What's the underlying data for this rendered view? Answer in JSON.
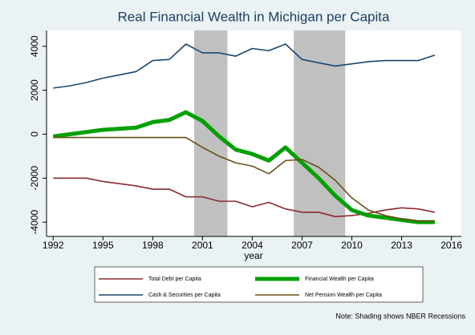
{
  "chart_data": {
    "type": "line",
    "title": "Real Financial Wealth in Michigan per Capita",
    "x_label": "year",
    "note": "Note: Shading shows NBER Recessions",
    "x": [
      1992,
      1993,
      1994,
      1995,
      1996,
      1997,
      1998,
      1999,
      2000,
      2001,
      2002,
      2003,
      2004,
      2005,
      2006,
      2007,
      2008,
      2009,
      2010,
      2011,
      2012,
      2013,
      2014,
      2015
    ],
    "series": [
      {
        "name": "Total Debt per Capita",
        "color": "#8b2a2f",
        "width": 1.6,
        "values": [
          -2000,
          -2000,
          -2000,
          -2150,
          -2250,
          -2350,
          -2500,
          -2500,
          -2850,
          -2850,
          -3050,
          -3050,
          -3300,
          -3100,
          -3400,
          -3550,
          -3550,
          -3750,
          -3700,
          -3600,
          -3450,
          -3350,
          -3400,
          -3550
        ]
      },
      {
        "name": "Financial Wealth per Capita",
        "color": "#00a000",
        "width": 5,
        "values": [
          -100,
          0,
          100,
          200,
          250,
          300,
          550,
          650,
          1000,
          600,
          -100,
          -700,
          -900,
          -1200,
          -600,
          -1300,
          -2000,
          -2800,
          -3450,
          -3700,
          -3800,
          -3900,
          -4000,
          -4000
        ]
      },
      {
        "name": "Cash & Securities per Capita",
        "color": "#1a476f",
        "width": 1.6,
        "values": [
          2100,
          2200,
          2350,
          2550,
          2700,
          2850,
          3350,
          3400,
          4100,
          3700,
          3700,
          3550,
          3900,
          3800,
          4100,
          3400,
          3250,
          3100,
          3200,
          3300,
          3350,
          3350,
          3350,
          3600
        ]
      },
      {
        "name": "Net Pension Wealth per Capita",
        "color": "#6b4e16",
        "width": 1.6,
        "values": [
          -150,
          -150,
          -150,
          -150,
          -150,
          -150,
          -150,
          -150,
          -150,
          -600,
          -1000,
          -1300,
          -1450,
          -1800,
          -1200,
          -1150,
          -1500,
          -2100,
          -2900,
          -3450,
          -3700,
          -3850,
          -3950,
          -3950
        ]
      }
    ],
    "shaded_ranges": [
      [
        2000.5,
        2002.5
      ],
      [
        2006.5,
        2009.6
      ]
    ],
    "shade_color": "#c0c0c0",
    "xlim": [
      1991.6,
      2016.6
    ],
    "xticks": [
      1992,
      1995,
      1998,
      2001,
      2004,
      2007,
      2010,
      2013,
      2016
    ],
    "ylim": [
      -4650,
      4720
    ],
    "yticks": [
      4000,
      2000,
      0,
      -2000,
      -4000
    ],
    "legend": "bottom"
  }
}
